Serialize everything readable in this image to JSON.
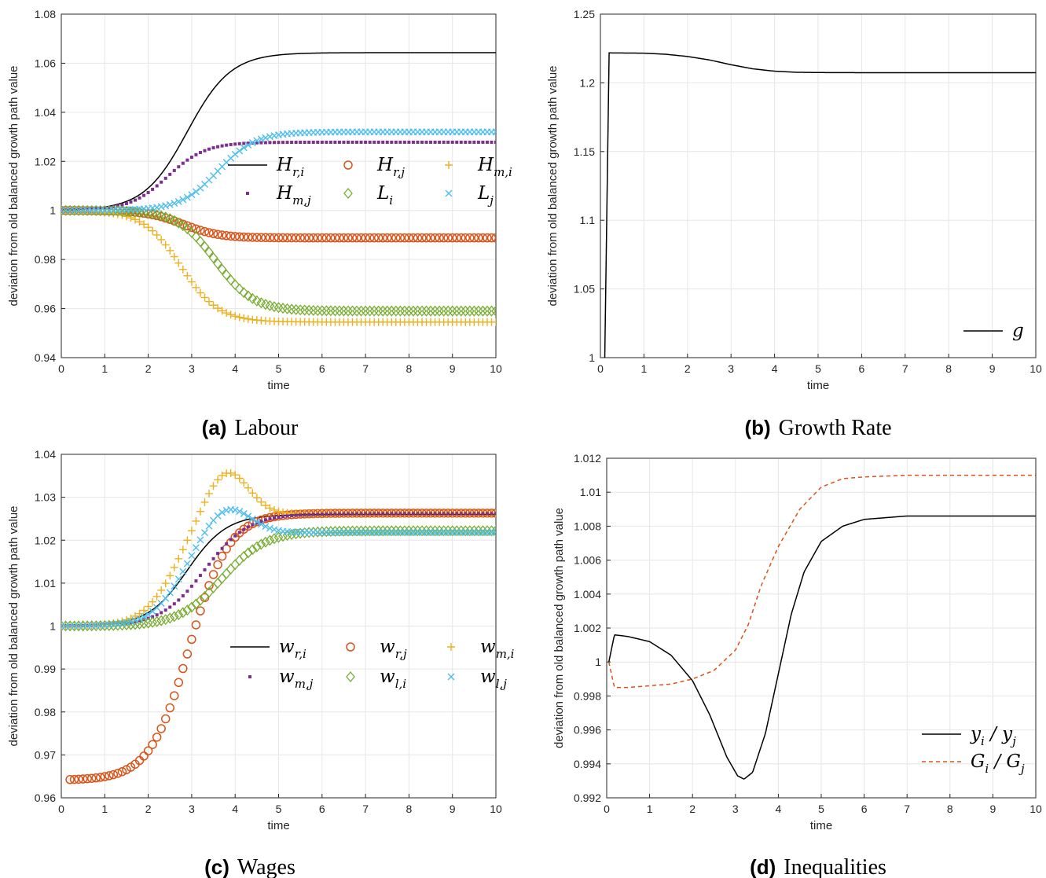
{
  "colors": {
    "black": "#000000",
    "orange": "#d95319",
    "yellow": "#edb120",
    "purple": "#7e2f8e",
    "green": "#77ac30",
    "cyan": "#4dbeee"
  },
  "chart_data": [
    {
      "id": "a",
      "type": "line",
      "caption_label": "(a)",
      "caption_title": "Labour",
      "xlabel": "time",
      "ylabel": "deviation from old balanced growth path value",
      "xlim": [
        0,
        10
      ],
      "ylim": [
        0.94,
        1.08
      ],
      "xticks": [
        "0",
        "1",
        "2",
        "3",
        "4",
        "5",
        "6",
        "7",
        "8",
        "9",
        "10"
      ],
      "yticks": [
        "0.94",
        "0.96",
        "0.98",
        "1",
        "1.02",
        "1.04",
        "1.06",
        "1.08"
      ],
      "grid": true,
      "legend": "center-right, 2 rows x 3 columns",
      "series": [
        {
          "name": "H",
          "sub": "r,i",
          "marker": "line",
          "color": "#000000",
          "start": 1.0,
          "end": 1.0643,
          "t0": 2.9,
          "k": 2.0
        },
        {
          "name": "H",
          "sub": "r,j",
          "marker": "circle",
          "color": "#d95319",
          "start": 1.0,
          "end": 0.9888,
          "t0": 2.8,
          "k": 2.4
        },
        {
          "name": "H",
          "sub": "m,i",
          "marker": "plus",
          "color": "#edb120",
          "start": 1.0,
          "end": 0.9545,
          "t0": 2.75,
          "k": 2.3
        },
        {
          "name": "H",
          "sub": "m,j",
          "marker": "dot",
          "color": "#7e2f8e",
          "start": 1.0,
          "end": 1.0278,
          "t0": 2.45,
          "k": 2.3
        },
        {
          "name": "L",
          "sub": "i",
          "marker": "diamond",
          "color": "#77ac30",
          "start": 1.0,
          "end": 0.959,
          "t0": 3.55,
          "k": 2.3
        },
        {
          "name": "L",
          "sub": "j",
          "marker": "cross",
          "color": "#4dbeee",
          "start": 1.0,
          "end": 1.032,
          "t0": 3.6,
          "k": 2.3
        }
      ]
    },
    {
      "id": "b",
      "type": "line",
      "caption_label": "(b)",
      "caption_title": "Growth Rate",
      "xlabel": "time",
      "ylabel": "deviation from old balanced growth path value",
      "xlim": [
        0,
        10
      ],
      "ylim": [
        1.0,
        1.25
      ],
      "xticks": [
        "0",
        "1",
        "2",
        "3",
        "4",
        "5",
        "6",
        "7",
        "8",
        "9",
        "10"
      ],
      "yticks": [
        "1",
        "1.05",
        "1.1",
        "1.15",
        "1.2",
        "1.25"
      ],
      "grid": true,
      "legend": "bottom-right",
      "series": [
        {
          "name": "g",
          "sub": "",
          "marker": "line",
          "color": "#000000",
          "points": [
            [
              0.1,
              1.0
            ],
            [
              0.2,
              1.2218
            ],
            [
              1,
              1.2216
            ],
            [
              1.5,
              1.2208
            ],
            [
              2,
              1.2192
            ],
            [
              2.5,
              1.2167
            ],
            [
              3,
              1.2132
            ],
            [
              3.5,
              1.2102
            ],
            [
              4,
              1.2085
            ],
            [
              4.5,
              1.2077
            ],
            [
              5,
              1.2075
            ],
            [
              6,
              1.2074
            ],
            [
              10,
              1.2074
            ]
          ]
        }
      ]
    },
    {
      "id": "c",
      "type": "line",
      "caption_label": "(c)",
      "caption_title": "Wages",
      "xlabel": "time",
      "ylabel": "deviation from old balanced growth path value",
      "xlim": [
        0,
        10
      ],
      "ylim": [
        0.96,
        1.04
      ],
      "xticks": [
        "0",
        "1",
        "2",
        "3",
        "4",
        "5",
        "6",
        "7",
        "8",
        "9",
        "10"
      ],
      "yticks": [
        "0.96",
        "0.97",
        "0.98",
        "0.99",
        "1",
        "1.01",
        "1.02",
        "1.03",
        "1.04"
      ],
      "grid": true,
      "legend": "center-right, 2 rows x 3 columns",
      "series": [
        {
          "name": "w",
          "sub": "r,i",
          "marker": "line",
          "color": "#000000",
          "start": 1.0,
          "end": 1.026,
          "t0": 2.9,
          "k": 2.2
        },
        {
          "name": "w",
          "sub": "r,j",
          "marker": "circle",
          "color": "#d95319",
          "start": 0.9641,
          "end": 1.0263,
          "t0": 2.95,
          "k": 2.2
        },
        {
          "name": "w",
          "sub": "m,i",
          "marker": "plus",
          "color": "#edb120",
          "start": 1.0,
          "end": 1.0262,
          "t0": 2.6,
          "k": 2.6,
          "bump": 0.0105,
          "bumpAt": 3.8,
          "bumpW": 0.7
        },
        {
          "name": "w",
          "sub": "m,j",
          "marker": "dot",
          "color": "#7e2f8e",
          "start": 1.0,
          "end": 1.0262,
          "t0": 3.3,
          "k": 2.0
        },
        {
          "name": "w",
          "sub": "l,i",
          "marker": "diamond",
          "color": "#77ac30",
          "start": 1.0,
          "end": 1.0222,
          "t0": 3.7,
          "k": 2.0
        },
        {
          "name": "w",
          "sub": "l,j",
          "marker": "cross",
          "color": "#4dbeee",
          "start": 1.0,
          "end": 1.0218,
          "t0": 2.75,
          "k": 2.6,
          "bump": 0.0065,
          "bumpAt": 3.8,
          "bumpW": 0.75
        }
      ]
    },
    {
      "id": "d",
      "type": "line",
      "caption_label": "(d)",
      "caption_title": "Inequalities",
      "xlabel": "time",
      "ylabel": "deviation from old balanced growth path value",
      "xlim": [
        0,
        10
      ],
      "ylim": [
        0.992,
        1.012
      ],
      "xticks": [
        "0",
        "1",
        "2",
        "3",
        "4",
        "5",
        "6",
        "7",
        "8",
        "9",
        "10"
      ],
      "yticks": [
        "0.992",
        "0.994",
        "0.996",
        "0.998",
        "1",
        "1.002",
        "1.004",
        "1.006",
        "1.008",
        "1.01",
        "1.012"
      ],
      "grid": true,
      "legend": "bottom-right",
      "series": [
        {
          "name": "y",
          "sub": "i",
          "den": "y",
          "densub": "j",
          "marker": "line",
          "color": "#000000",
          "points": [
            [
              0.05,
              1.0
            ],
            [
              0.18,
              1.0016
            ],
            [
              0.5,
              1.0015
            ],
            [
              1.0,
              1.0012
            ],
            [
              1.5,
              1.0004
            ],
            [
              2.0,
              0.9989
            ],
            [
              2.4,
              0.9969
            ],
            [
              2.8,
              0.9944
            ],
            [
              3.05,
              0.9933
            ],
            [
              3.2,
              0.9931
            ],
            [
              3.4,
              0.9935
            ],
            [
              3.7,
              0.9958
            ],
            [
              4.0,
              0.9993
            ],
            [
              4.3,
              1.0028
            ],
            [
              4.6,
              1.0053
            ],
            [
              5.0,
              1.0071
            ],
            [
              5.5,
              1.008
            ],
            [
              6.0,
              1.0084
            ],
            [
              7.0,
              1.0086
            ],
            [
              10,
              1.0086
            ]
          ]
        },
        {
          "name": "G",
          "sub": "i",
          "den": "G",
          "densub": "j",
          "marker": "dashed",
          "color": "#d95319",
          "points": [
            [
              0.05,
              1.0
            ],
            [
              0.18,
              0.9985
            ],
            [
              0.5,
              0.9985
            ],
            [
              1.0,
              0.9986
            ],
            [
              1.5,
              0.9987
            ],
            [
              2.0,
              0.999
            ],
            [
              2.5,
              0.9995
            ],
            [
              3.0,
              1.0007
            ],
            [
              3.3,
              1.0022
            ],
            [
              3.6,
              1.0045
            ],
            [
              4.0,
              1.0068
            ],
            [
              4.5,
              1.009
            ],
            [
              5.0,
              1.0103
            ],
            [
              5.5,
              1.0108
            ],
            [
              6.0,
              1.0109
            ],
            [
              7.0,
              1.011
            ],
            [
              10,
              1.011
            ]
          ]
        }
      ]
    }
  ]
}
